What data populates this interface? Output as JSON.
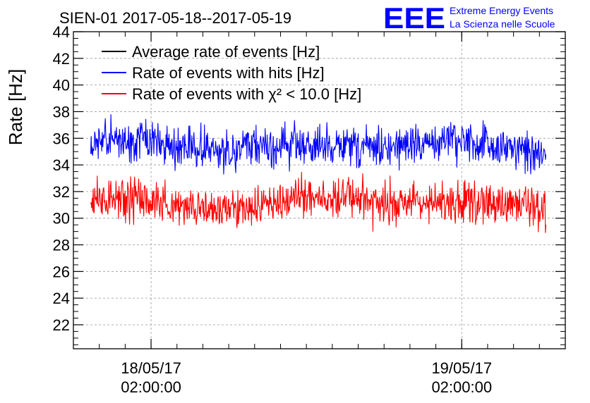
{
  "chart_data": {
    "type": "line",
    "title": "SIEN-01 2017-05-18--2017-05-19",
    "ylabel": "Rate [Hz]",
    "xlabel": "",
    "ylim": [
      20.2,
      44
    ],
    "yticks": [
      "22",
      "24",
      "26",
      "28",
      "30",
      "32",
      "34",
      "36",
      "38",
      "40",
      "42",
      "44"
    ],
    "xlim": [
      "2017-05-17 20:00",
      "2017-05-19 10:00"
    ],
    "xticks": [
      {
        "date": "18/05/17",
        "time": "02:00:00",
        "x": "2017-05-18 02:00"
      },
      {
        "date": "19/05/17",
        "time": "02:00:00",
        "x": "2017-05-19 02:00"
      }
    ],
    "grid": true,
    "legend_position": "top-left",
    "series": [
      {
        "name": "Average rate of events [Hz]",
        "color": "#000000",
        "x_range": [
          "2017-05-17 21:20",
          "2017-05-19 08:30"
        ],
        "mean": 35.4,
        "values": []
      },
      {
        "name": "Rate of events with hits [Hz]",
        "color": "#0000ff",
        "x_range": [
          "2017-05-17 21:20",
          "2017-05-19 08:30"
        ],
        "mean": 35.4,
        "min": 32.6,
        "max": 38.1
      },
      {
        "name": "Rate of events with χ² < 10.0 [Hz]",
        "color": "#ff0000",
        "x_range": [
          "2017-05-17 21:20",
          "2017-05-19 08:30"
        ],
        "mean": 31.2,
        "min": 28.2,
        "max": 33.8
      }
    ]
  },
  "logo": {
    "mark": "EEE",
    "line1": "Extreme Energy Events",
    "line2": "La Scienza nelle Scuole",
    "color": "#0000ff"
  }
}
